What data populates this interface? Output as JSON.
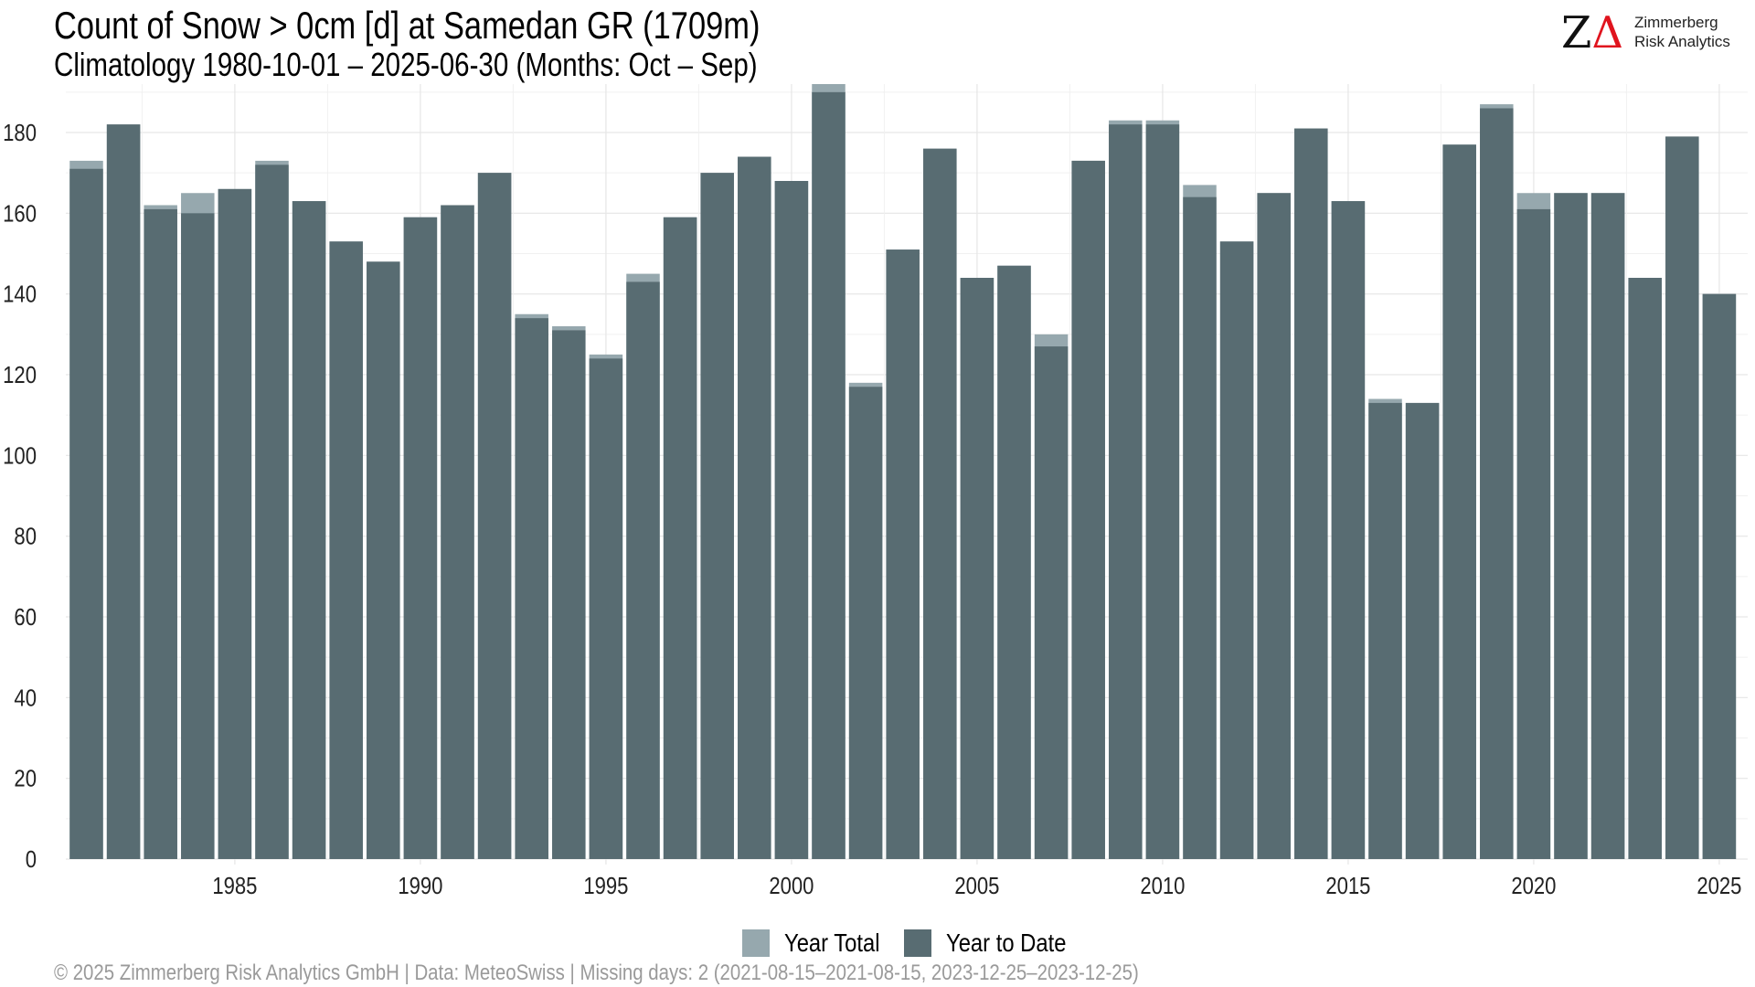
{
  "header": {
    "title": "Count of Snow > 0cm [d] at Samedan  GR (1709m)",
    "subtitle": "Climatology 1980-10-01 – 2025-06-30 (Months: Oct – Sep)"
  },
  "logo": {
    "mark_z": "Z",
    "mark_delta": "Δ",
    "line1": "Zimmerberg",
    "line2": "Risk Analytics"
  },
  "footer": {
    "text": "©  2025 Zimmerberg Risk Analytics GmbH | Data: MeteoSwiss | Missing days: 2 (2021-08-15–2021-08-15, 2023-12-25–2023-12-25)"
  },
  "colors": {
    "year_total": "#96a8ae",
    "year_to_date": "#586c72",
    "grid": "#e6e6e6",
    "text": "#000000"
  },
  "chart_data": {
    "type": "bar",
    "title": "Count of Snow > 0cm [d] at Samedan  GR (1709m)",
    "subtitle": "Climatology 1980-10-01 – 2025-06-30 (Months: Oct – Sep)",
    "xlabel": "",
    "ylabel": "",
    "ylim": [
      0,
      192
    ],
    "yticks": [
      0,
      20,
      40,
      60,
      80,
      100,
      120,
      140,
      160,
      180
    ],
    "xticks": [
      1985,
      1990,
      1995,
      2000,
      2005,
      2010,
      2015,
      2020,
      2025
    ],
    "grid": true,
    "legend_position": "bottom",
    "categories": [
      1981,
      1982,
      1983,
      1984,
      1985,
      1986,
      1987,
      1988,
      1989,
      1990,
      1991,
      1992,
      1993,
      1994,
      1995,
      1996,
      1997,
      1998,
      1999,
      2000,
      2001,
      2002,
      2003,
      2004,
      2005,
      2006,
      2007,
      2008,
      2009,
      2010,
      2011,
      2012,
      2013,
      2014,
      2015,
      2016,
      2017,
      2018,
      2019,
      2020,
      2021,
      2022,
      2023,
      2024,
      2025
    ],
    "series": [
      {
        "name": "Year Total",
        "values": [
          173,
          182,
          162,
          165,
          166,
          173,
          163,
          153,
          148,
          159,
          162,
          170,
          135,
          132,
          125,
          145,
          159,
          170,
          174,
          168,
          192,
          118,
          151,
          176,
          144,
          147,
          130,
          173,
          183,
          183,
          167,
          153,
          165,
          181,
          163,
          114,
          113,
          177,
          187,
          165,
          165,
          165,
          144,
          179,
          140
        ]
      },
      {
        "name": "Year to Date",
        "values": [
          171,
          182,
          161,
          160,
          166,
          172,
          163,
          153,
          148,
          159,
          162,
          170,
          134,
          131,
          124,
          143,
          159,
          170,
          174,
          168,
          190,
          117,
          151,
          176,
          144,
          147,
          127,
          173,
          182,
          182,
          164,
          153,
          165,
          181,
          163,
          113,
          113,
          177,
          186,
          161,
          165,
          165,
          144,
          179,
          140
        ]
      }
    ]
  }
}
